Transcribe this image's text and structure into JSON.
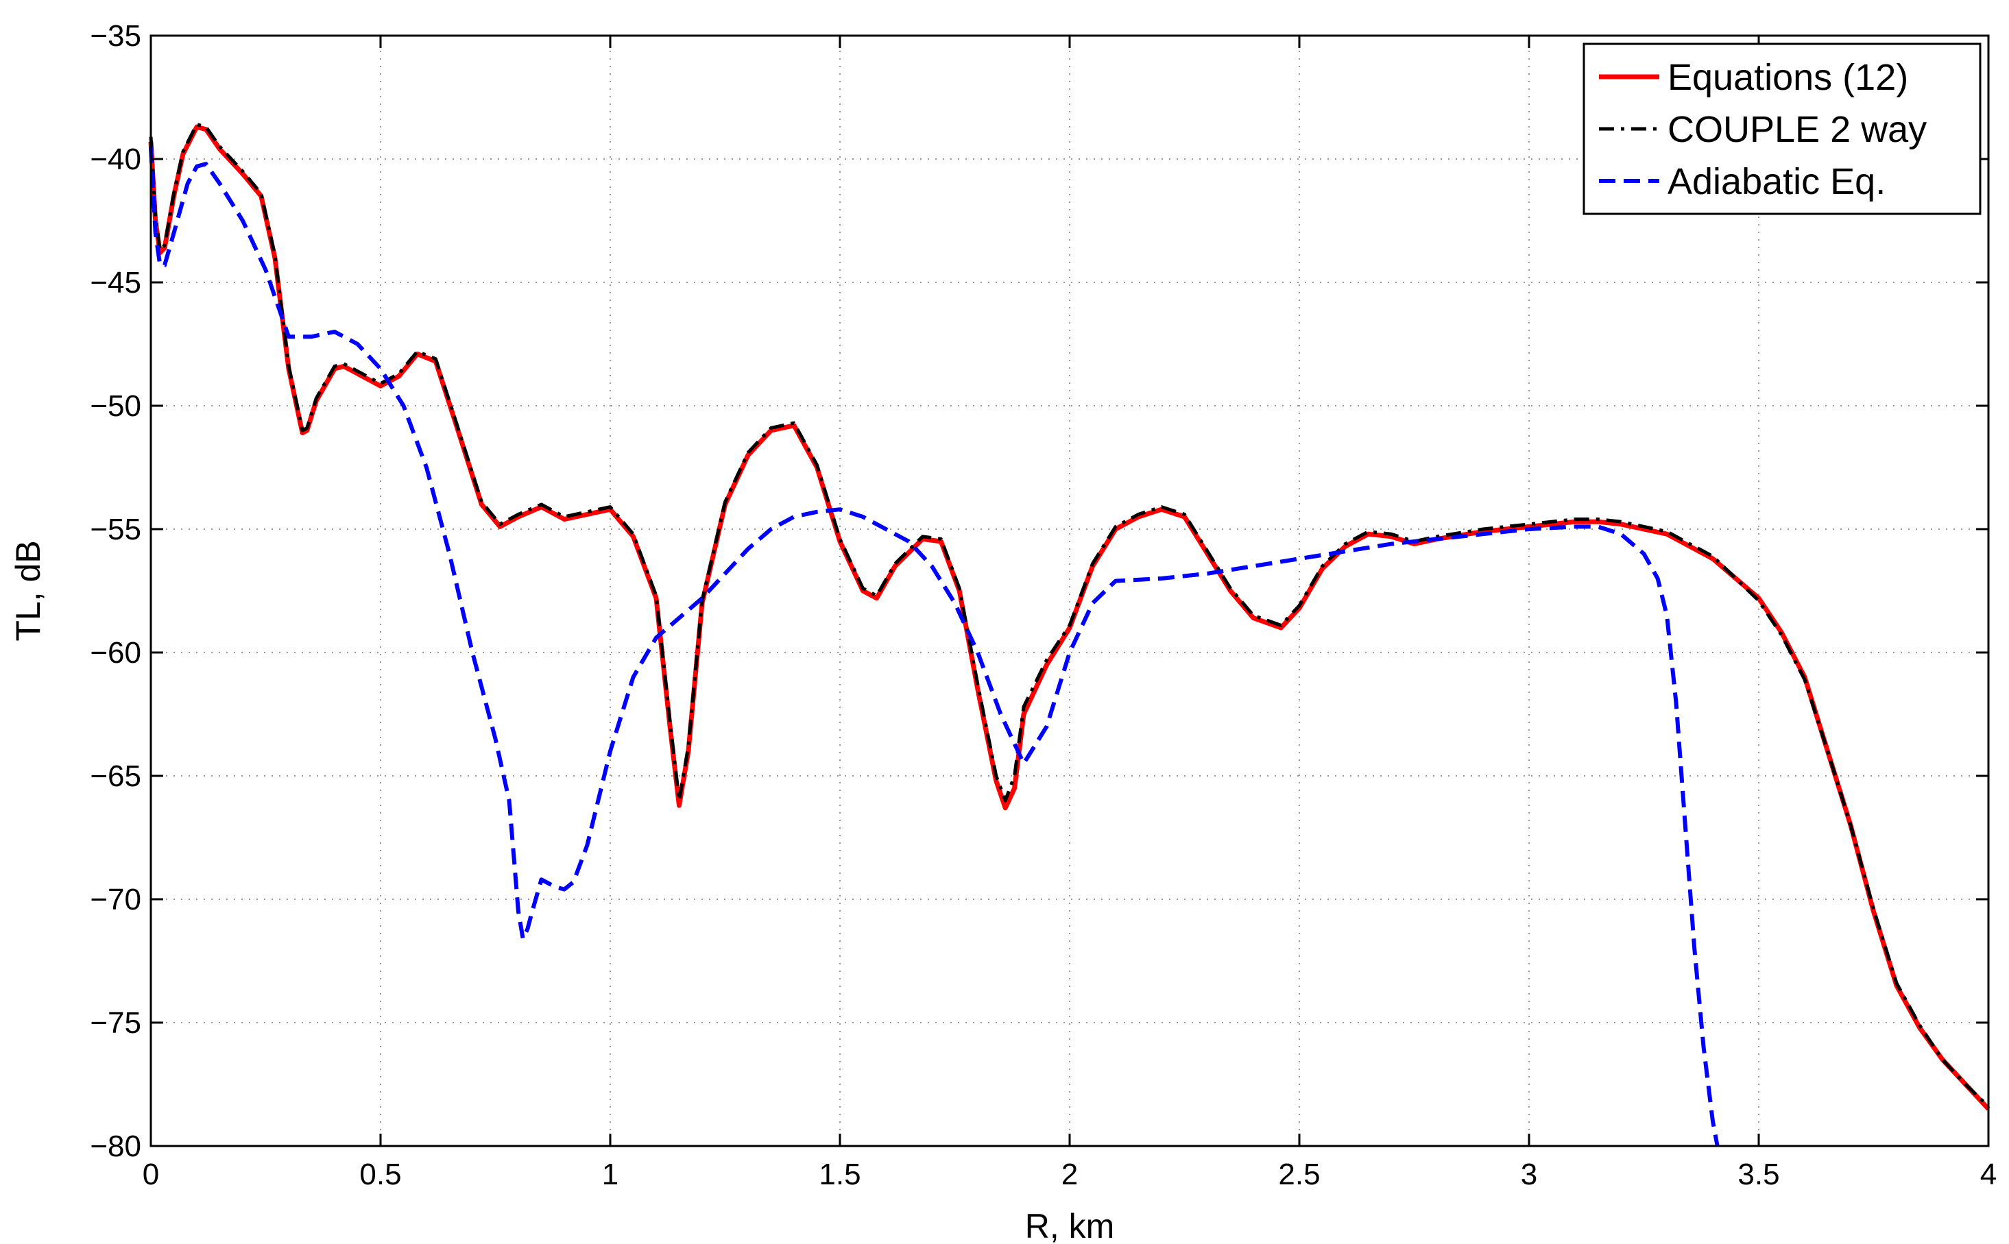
{
  "chart_data": {
    "type": "line",
    "title": "",
    "xlabel": "R, km",
    "ylabel": "TL, dB",
    "xlim": [
      0,
      4
    ],
    "ylim": [
      -80,
      -35
    ],
    "xticks": [
      0,
      0.5,
      1,
      1.5,
      2,
      2.5,
      3,
      3.5,
      4
    ],
    "xtick_labels": [
      "0",
      "0.5",
      "1",
      "1.5",
      "2",
      "2.5",
      "3",
      "3.5",
      "4"
    ],
    "yticks": [
      -80,
      -75,
      -70,
      -65,
      -60,
      -55,
      -50,
      -45,
      -40,
      -35
    ],
    "ytick_labels": [
      "−80",
      "−75",
      "−70",
      "−65",
      "−60",
      "−55",
      "−50",
      "−45",
      "−40",
      "−35"
    ],
    "grid": true,
    "legend_position": "top-right",
    "series": [
      {
        "name": "Equations (12)",
        "color": "#ff0000",
        "style": "solid",
        "x": [
          0.0,
          0.01,
          0.02,
          0.03,
          0.05,
          0.07,
          0.1,
          0.12,
          0.15,
          0.2,
          0.24,
          0.27,
          0.3,
          0.33,
          0.34,
          0.36,
          0.4,
          0.42,
          0.46,
          0.5,
          0.54,
          0.58,
          0.62,
          0.66,
          0.72,
          0.76,
          0.8,
          0.85,
          0.9,
          0.95,
          1.0,
          1.05,
          1.1,
          1.13,
          1.15,
          1.17,
          1.2,
          1.25,
          1.3,
          1.35,
          1.4,
          1.45,
          1.5,
          1.55,
          1.58,
          1.62,
          1.68,
          1.72,
          1.76,
          1.8,
          1.84,
          1.86,
          1.88,
          1.9,
          1.95,
          2.0,
          2.05,
          2.1,
          2.15,
          2.2,
          2.25,
          2.3,
          2.35,
          2.4,
          2.46,
          2.5,
          2.55,
          2.6,
          2.65,
          2.7,
          2.75,
          2.8,
          2.9,
          3.0,
          3.1,
          3.15,
          3.2,
          3.3,
          3.4,
          3.5,
          3.55,
          3.6,
          3.65,
          3.7,
          3.75,
          3.8,
          3.85,
          3.9,
          3.95,
          4.0
        ],
        "y": [
          -39.3,
          -42.5,
          -43.8,
          -43.6,
          -41.5,
          -39.8,
          -38.7,
          -38.8,
          -39.6,
          -40.6,
          -41.5,
          -44.0,
          -48.5,
          -51.1,
          -51.0,
          -49.8,
          -48.5,
          -48.4,
          -48.8,
          -49.2,
          -48.8,
          -47.9,
          -48.2,
          -50.5,
          -54.0,
          -54.9,
          -54.5,
          -54.1,
          -54.6,
          -54.4,
          -54.2,
          -55.3,
          -57.8,
          -63.0,
          -66.2,
          -64.0,
          -58.0,
          -54.0,
          -52.0,
          -51.0,
          -50.8,
          -52.5,
          -55.5,
          -57.5,
          -57.8,
          -56.5,
          -55.4,
          -55.5,
          -57.5,
          -61.5,
          -65.2,
          -66.3,
          -65.5,
          -62.5,
          -60.5,
          -59.0,
          -56.5,
          -55.0,
          -54.5,
          -54.2,
          -54.5,
          -56.0,
          -57.5,
          -58.6,
          -59.0,
          -58.2,
          -56.6,
          -55.7,
          -55.2,
          -55.3,
          -55.6,
          -55.4,
          -55.1,
          -54.9,
          -54.7,
          -54.7,
          -54.8,
          -55.2,
          -56.2,
          -57.8,
          -59.2,
          -61.0,
          -64.0,
          -67.0,
          -70.5,
          -73.5,
          -75.2,
          -76.5,
          -77.5,
          -78.5
        ]
      },
      {
        "name": "COUPLE 2 way",
        "color": "#000000",
        "style": "dashdot",
        "x": [
          0.0,
          0.01,
          0.02,
          0.03,
          0.05,
          0.07,
          0.1,
          0.12,
          0.15,
          0.2,
          0.24,
          0.27,
          0.3,
          0.33,
          0.34,
          0.36,
          0.4,
          0.42,
          0.46,
          0.5,
          0.54,
          0.58,
          0.62,
          0.66,
          0.72,
          0.76,
          0.8,
          0.85,
          0.9,
          0.95,
          1.0,
          1.05,
          1.1,
          1.13,
          1.15,
          1.17,
          1.2,
          1.25,
          1.3,
          1.35,
          1.4,
          1.45,
          1.5,
          1.55,
          1.58,
          1.62,
          1.68,
          1.72,
          1.76,
          1.8,
          1.84,
          1.86,
          1.88,
          1.9,
          1.95,
          2.0,
          2.05,
          2.1,
          2.15,
          2.2,
          2.25,
          2.3,
          2.35,
          2.4,
          2.46,
          2.5,
          2.55,
          2.6,
          2.65,
          2.7,
          2.75,
          2.8,
          2.9,
          3.0,
          3.1,
          3.15,
          3.2,
          3.3,
          3.4,
          3.5,
          3.55,
          3.6,
          3.65,
          3.7,
          3.75,
          3.8,
          3.85,
          3.9,
          3.95,
          4.0
        ],
        "y": [
          -39.1,
          -42.3,
          -43.7,
          -43.5,
          -41.4,
          -39.7,
          -38.6,
          -38.7,
          -39.5,
          -40.5,
          -41.4,
          -43.9,
          -48.4,
          -51.0,
          -50.9,
          -49.7,
          -48.4,
          -48.3,
          -48.7,
          -49.1,
          -48.7,
          -47.8,
          -48.1,
          -50.4,
          -53.9,
          -54.8,
          -54.4,
          -54.0,
          -54.5,
          -54.3,
          -54.1,
          -55.2,
          -57.7,
          -62.8,
          -66.0,
          -63.8,
          -57.9,
          -53.9,
          -51.9,
          -50.9,
          -50.7,
          -52.4,
          -55.4,
          -57.4,
          -57.7,
          -56.4,
          -55.3,
          -55.4,
          -57.4,
          -61.3,
          -65.0,
          -66.0,
          -65.0,
          -62.2,
          -60.3,
          -58.9,
          -56.4,
          -54.9,
          -54.4,
          -54.1,
          -54.4,
          -55.9,
          -57.4,
          -58.5,
          -58.9,
          -58.1,
          -56.5,
          -55.6,
          -55.1,
          -55.2,
          -55.5,
          -55.3,
          -55.0,
          -54.8,
          -54.6,
          -54.6,
          -54.7,
          -55.1,
          -56.1,
          -57.9,
          -59.3,
          -61.1,
          -64.0,
          -67.0,
          -70.4,
          -73.4,
          -75.1,
          -76.5,
          -77.5,
          -78.4
        ]
      },
      {
        "name": "Adiabatic Eq.",
        "color": "#0000ff",
        "style": "dashed",
        "x": [
          0.0,
          0.01,
          0.02,
          0.03,
          0.05,
          0.08,
          0.1,
          0.12,
          0.15,
          0.2,
          0.25,
          0.3,
          0.35,
          0.4,
          0.45,
          0.5,
          0.55,
          0.6,
          0.65,
          0.7,
          0.75,
          0.78,
          0.8,
          0.81,
          0.82,
          0.83,
          0.85,
          0.88,
          0.9,
          0.92,
          0.95,
          1.0,
          1.05,
          1.1,
          1.15,
          1.2,
          1.25,
          1.3,
          1.35,
          1.4,
          1.45,
          1.5,
          1.55,
          1.6,
          1.65,
          1.7,
          1.75,
          1.8,
          1.85,
          1.9,
          1.95,
          2.0,
          2.05,
          2.1,
          2.2,
          2.3,
          2.4,
          2.5,
          2.6,
          2.7,
          2.8,
          2.9,
          3.0,
          3.1,
          3.15,
          3.2,
          3.25,
          3.28,
          3.3,
          3.32,
          3.34,
          3.36,
          3.38,
          3.4,
          3.41
        ],
        "y": [
          -39.5,
          -43.0,
          -44.3,
          -44.3,
          -43.0,
          -41.0,
          -40.3,
          -40.2,
          -41.0,
          -42.5,
          -44.5,
          -47.2,
          -47.2,
          -47.0,
          -47.5,
          -48.5,
          -50.0,
          -52.5,
          -56.0,
          -60.0,
          -63.5,
          -66.0,
          -70.5,
          -71.6,
          -71.2,
          -70.5,
          -69.2,
          -69.5,
          -69.6,
          -69.3,
          -67.8,
          -64.0,
          -61.0,
          -59.4,
          -58.6,
          -57.8,
          -56.8,
          -55.8,
          -55.0,
          -54.5,
          -54.3,
          -54.2,
          -54.5,
          -55.0,
          -55.5,
          -56.5,
          -58.0,
          -60.0,
          -62.5,
          -64.5,
          -63.0,
          -60.0,
          -58.0,
          -57.1,
          -57.0,
          -56.8,
          -56.5,
          -56.2,
          -55.9,
          -55.6,
          -55.4,
          -55.2,
          -55.0,
          -54.9,
          -54.9,
          -55.2,
          -56.0,
          -57.0,
          -58.5,
          -62.0,
          -67.0,
          -72.0,
          -76.0,
          -79.0,
          -80.0
        ]
      }
    ]
  }
}
